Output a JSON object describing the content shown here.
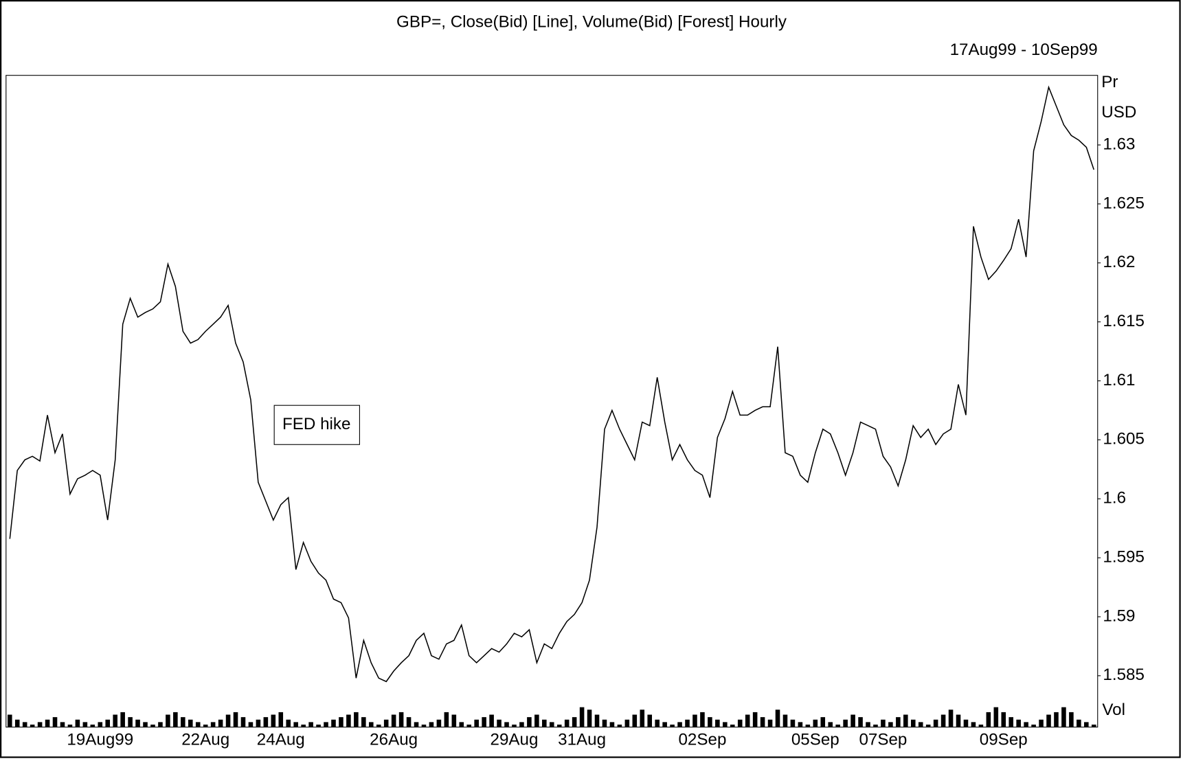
{
  "chart_data": [
    {
      "type": "line",
      "title": "GBP=, Close(Bid) [Line], Volume(Bid) [Forest] Hourly",
      "subtitle": "17Aug99 - 10Sep99",
      "y_label": [
        "Pr",
        "USD"
      ],
      "volume_label": "Vol",
      "annotation": "FED hike",
      "categories": [
        null,
        null,
        null,
        null,
        null,
        null,
        null,
        null,
        null,
        null,
        null,
        null,
        "19Aug99",
        null,
        null,
        null,
        null,
        null,
        null,
        null,
        null,
        null,
        null,
        null,
        null,
        null,
        "22Aug",
        null,
        null,
        null,
        null,
        null,
        null,
        null,
        null,
        null,
        "24Aug",
        null,
        null,
        null,
        null,
        null,
        null,
        null,
        null,
        null,
        null,
        null,
        null,
        null,
        null,
        "26Aug",
        null,
        null,
        null,
        null,
        null,
        null,
        null,
        null,
        null,
        null,
        null,
        null,
        null,
        null,
        null,
        "29Aug",
        null,
        null,
        null,
        null,
        null,
        null,
        null,
        null,
        "31Aug",
        null,
        null,
        null,
        null,
        null,
        null,
        null,
        null,
        null,
        null,
        null,
        null,
        null,
        null,
        null,
        "02Sep",
        null,
        null,
        null,
        null,
        null,
        null,
        null,
        null,
        null,
        null,
        null,
        null,
        null,
        null,
        "05Sep",
        null,
        null,
        null,
        null,
        null,
        null,
        null,
        null,
        "07Sep",
        null,
        null,
        null,
        null,
        null,
        null,
        null,
        null,
        null,
        null,
        null,
        null,
        null,
        null,
        null,
        "09Sep",
        null,
        null,
        null,
        null,
        null,
        null,
        null,
        null,
        null,
        null,
        null,
        null
      ],
      "series": [
        {
          "name": "Close(Bid)",
          "color": "#000000",
          "values": [
            1.5966,
            1.6024,
            1.6033,
            1.6036,
            1.6032,
            1.6071,
            1.6039,
            1.6055,
            1.6004,
            1.6017,
            1.602,
            1.6024,
            1.602,
            1.5982,
            1.6033,
            1.6148,
            1.617,
            1.6154,
            1.6158,
            1.6161,
            1.6167,
            1.6199,
            1.618,
            1.6142,
            1.6132,
            1.6135,
            1.6142,
            1.6148,
            1.6154,
            1.6164,
            1.6132,
            1.6116,
            1.6084,
            1.6014,
            1.5998,
            1.5982,
            1.5995,
            1.6001,
            1.594,
            1.5963,
            1.5947,
            1.5937,
            1.5931,
            1.5915,
            1.5912,
            1.5899,
            1.5848,
            1.588,
            1.5861,
            1.5848,
            1.5845,
            1.5854,
            1.5861,
            1.5867,
            1.588,
            1.5886,
            1.5867,
            1.5864,
            1.5877,
            1.588,
            1.5893,
            1.5867,
            1.5861,
            1.5867,
            1.5873,
            1.587,
            1.5877,
            1.5886,
            1.5883,
            1.5889,
            1.5861,
            1.5877,
            1.5873,
            1.5886,
            1.5896,
            1.5902,
            1.5912,
            1.5931,
            1.5976,
            1.6059,
            1.6075,
            1.6059,
            1.6046,
            1.6033,
            1.6065,
            1.6062,
            1.6103,
            1.6065,
            1.6033,
            1.6046,
            1.6033,
            1.6024,
            1.602,
            1.6001,
            1.6052,
            1.6068,
            1.6091,
            1.6071,
            1.6071,
            1.6075,
            1.6078,
            1.6078,
            1.6129,
            1.6039,
            1.6036,
            1.602,
            1.6014,
            1.6039,
            1.6059,
            1.6055,
            1.6039,
            1.602,
            1.6039,
            1.6065,
            1.6062,
            1.6059,
            1.6036,
            1.6027,
            1.6011,
            1.6033,
            1.6062,
            1.6052,
            1.6059,
            1.6046,
            1.6055,
            1.6059,
            1.6097,
            1.6071,
            1.6231,
            1.6205,
            1.6186,
            1.6193,
            1.6202,
            1.6212,
            1.6237,
            1.6205,
            1.6295,
            1.632,
            1.6349,
            1.6333,
            1.6317,
            1.6308,
            1.6304,
            1.6298,
            1.6279
          ]
        }
      ],
      "ylim": [
        1.5832,
        1.6359
      ],
      "yticks": [
        1.585,
        1.59,
        1.595,
        1.6,
        1.605,
        1.61,
        1.615,
        1.62,
        1.625,
        1.63
      ],
      "grid": false
    },
    {
      "type": "bar",
      "color": "#000000",
      "ylim": [
        0,
        10
      ],
      "values": [
        5,
        3,
        2,
        1,
        2,
        3,
        4,
        2,
        1,
        3,
        2,
        1,
        2,
        3,
        5,
        6,
        4,
        3,
        2,
        1,
        2,
        5,
        6,
        4,
        3,
        2,
        1,
        2,
        3,
        5,
        6,
        4,
        2,
        3,
        4,
        5,
        6,
        3,
        2,
        1,
        2,
        1,
        2,
        3,
        4,
        5,
        6,
        4,
        2,
        1,
        3,
        5,
        6,
        4,
        2,
        1,
        2,
        3,
        6,
        5,
        2,
        1,
        3,
        4,
        5,
        3,
        2,
        1,
        2,
        4,
        5,
        3,
        2,
        1,
        3,
        4,
        8,
        7,
        5,
        3,
        2,
        1,
        3,
        5,
        7,
        5,
        3,
        2,
        1,
        2,
        3,
        5,
        6,
        4,
        3,
        2,
        1,
        3,
        5,
        6,
        4,
        3,
        7,
        5,
        3,
        2,
        1,
        3,
        4,
        2,
        1,
        3,
        5,
        4,
        2,
        1,
        3,
        2,
        4,
        5,
        3,
        2,
        1,
        3,
        5,
        7,
        5,
        3,
        2,
        1,
        6,
        8,
        6,
        4,
        3,
        2,
        1,
        3,
        5,
        6,
        8,
        6,
        3,
        2,
        1
      ]
    }
  ]
}
